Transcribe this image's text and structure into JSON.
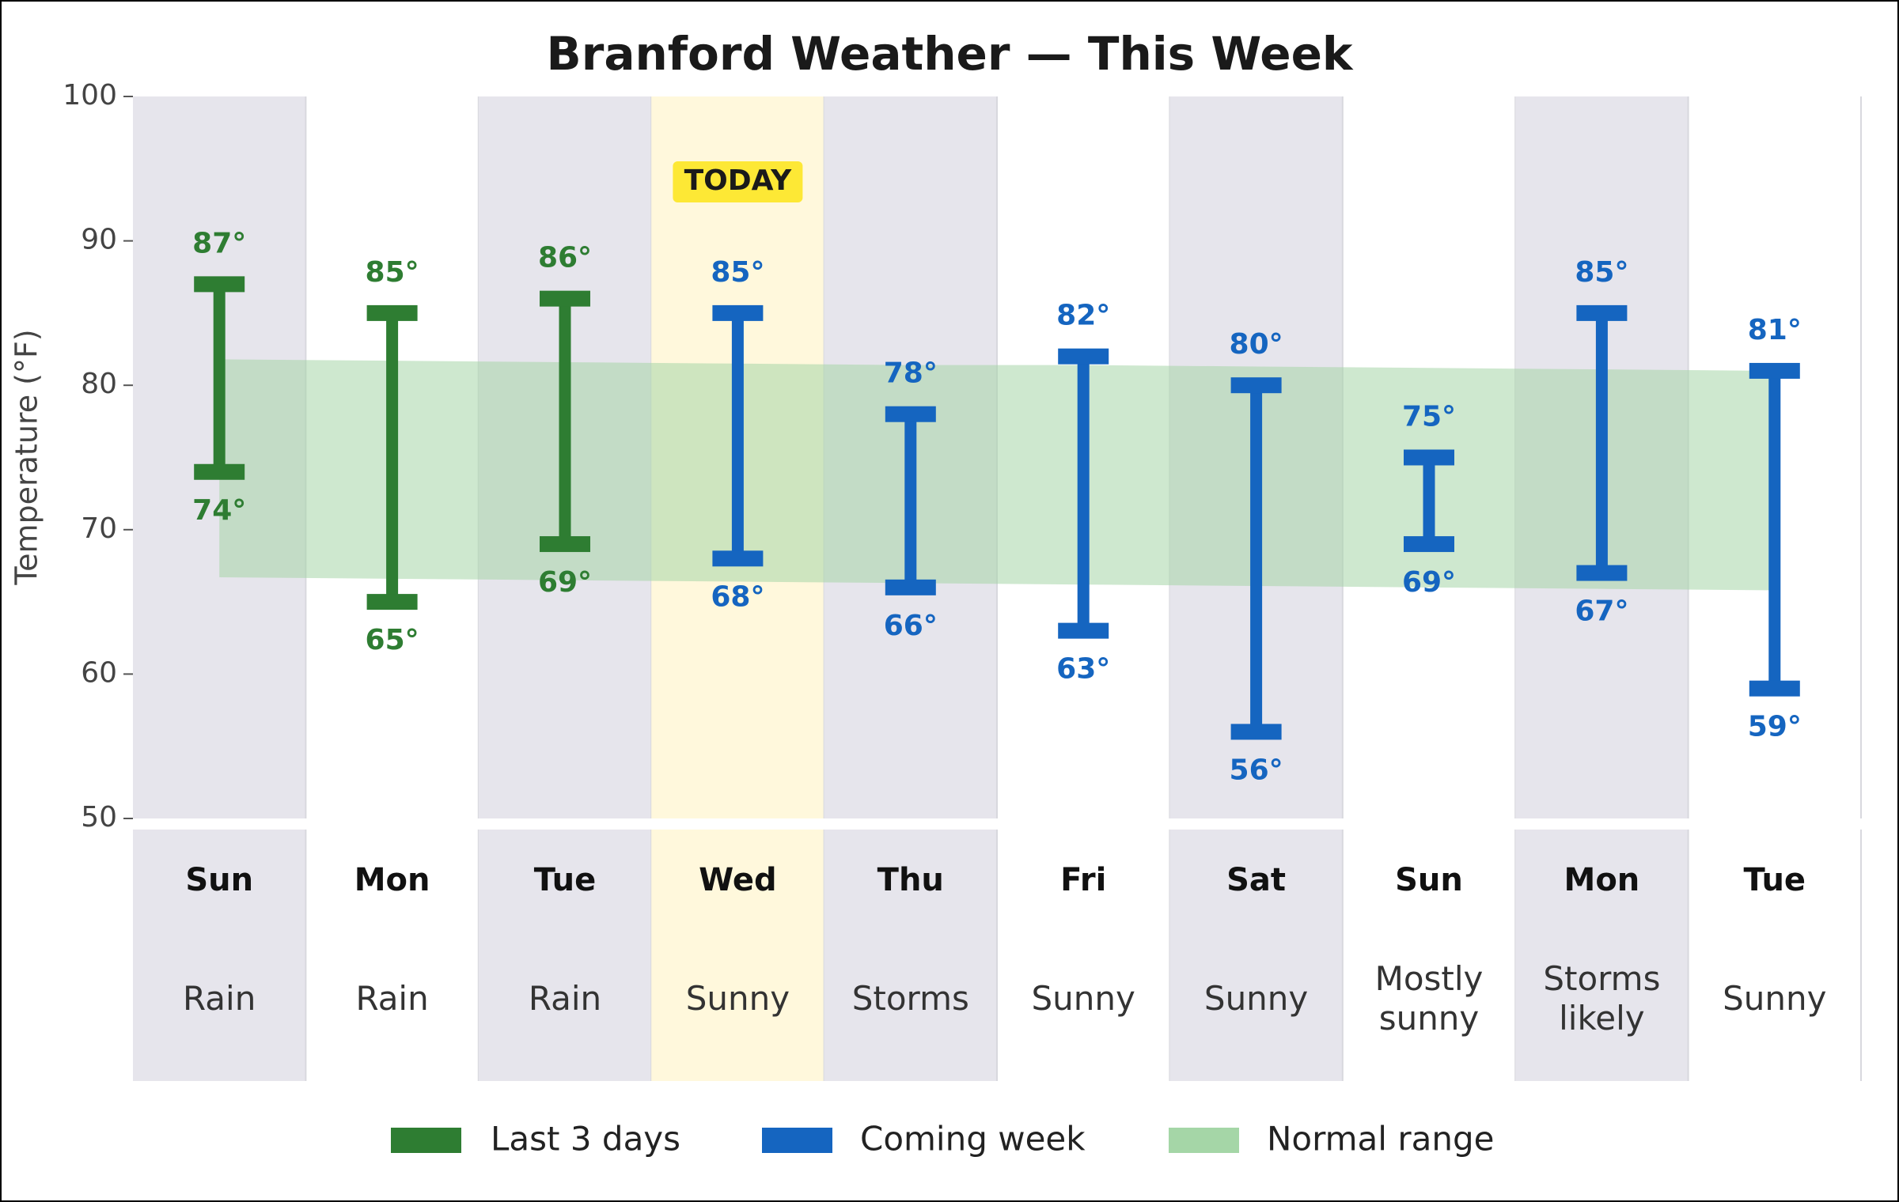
{
  "chart_data": {
    "type": "range",
    "title": "Branford Weather — This Week",
    "y_label": "Temperature (°F)",
    "categories": [
      "Sun",
      "Mon",
      "Tue",
      "Wed",
      "Thu",
      "Fri",
      "Sat",
      "Sun",
      "Mon",
      "Tue"
    ],
    "conditions": [
      "Rain",
      "Rain",
      "Rain",
      "Sunny",
      "Storms",
      "Sunny",
      "Sunny",
      "Mostly sunny",
      "Storms likely",
      "Sunny"
    ],
    "today_index": 3,
    "today_label": "TODAY",
    "series": [
      {
        "name": "Last 3 days",
        "color": "#2e7d32",
        "high": [
          87,
          85,
          86,
          null,
          null,
          null,
          null,
          null,
          null,
          null
        ],
        "high_labels": [
          "87°",
          "85°",
          "86°",
          null,
          null,
          null,
          null,
          null,
          null,
          null
        ],
        "low": [
          74,
          65,
          69,
          null,
          null,
          null,
          null,
          null,
          null,
          null
        ],
        "low_labels": [
          "74°",
          "65°",
          "69°",
          null,
          null,
          null,
          null,
          null,
          null,
          null
        ]
      },
      {
        "name": "Coming week",
        "color": "#1565c0",
        "high": [
          null,
          null,
          null,
          85,
          78,
          82,
          80,
          75,
          85,
          81
        ],
        "high_labels": [
          null,
          null,
          null,
          "85°",
          "78°",
          "82°",
          "80°",
          "75°",
          "85°",
          "81°"
        ],
        "low": [
          null,
          null,
          null,
          68,
          66,
          63,
          56,
          69,
          67,
          59
        ],
        "low_labels": [
          null,
          null,
          null,
          "68°",
          "66°",
          "63°",
          "56°",
          "69°",
          "67°",
          "59°"
        ]
      }
    ],
    "normal": {
      "name": "Normal range",
      "color": "#a5d6a7",
      "high": [
        81.8,
        81.7,
        81.6,
        81.5,
        81.4,
        81.4,
        81.3,
        81.2,
        81.1,
        81.0
      ],
      "low": [
        66.7,
        66.6,
        66.5,
        66.4,
        66.3,
        66.2,
        66.1,
        66.0,
        65.9,
        65.8
      ]
    },
    "ylim": [
      50,
      100
    ],
    "yticks": [
      50,
      60,
      70,
      80,
      90,
      100
    ]
  }
}
